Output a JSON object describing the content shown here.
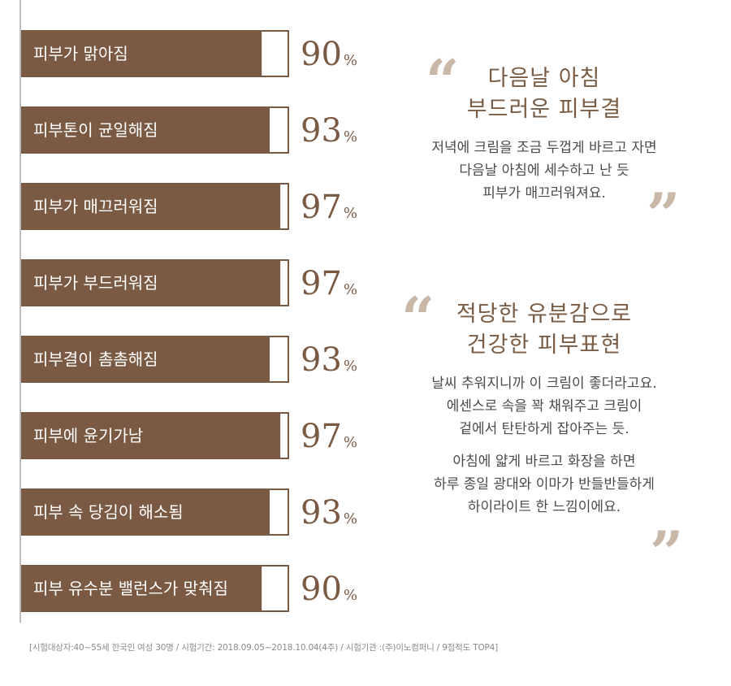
{
  "chart_data": {
    "type": "bar",
    "orientation": "horizontal",
    "categories": [
      "피부가 맑아짐",
      "피부톤이 균일해짐",
      "피부가 매끄러워짐",
      "피부가 부드러워짐",
      "피부결이 촘촘해짐",
      "피부에 윤기가남",
      "피부 속 당김이 해소됨",
      "피부 유수분 밸런스가 맞춰짐"
    ],
    "values": [
      90,
      93,
      97,
      97,
      93,
      97,
      93,
      90
    ],
    "value_labels": [
      "90",
      "93",
      "97",
      "97",
      "93",
      "97",
      "93",
      "90"
    ],
    "unit": "%",
    "xlim": [
      0,
      100
    ],
    "bar_color": "#7b5a44",
    "remainder_color": "#ffffff"
  },
  "testimonials": [
    {
      "title_lines": [
        "다음날 아침",
        "부드러운 피부결"
      ],
      "body_lines": [
        "저녁에 크림을 조금 두껍게 바르고 자면",
        "다음날 아침에 세수하고 난 듯",
        "피부가 매끄러워져요."
      ],
      "open_mark": "“",
      "close_mark": "”"
    },
    {
      "title_lines": [
        "적당한 유분감으로",
        "건강한 피부표현"
      ],
      "body_lines_1": [
        "날씨 추워지니까 이 크림이 좋더라고요.",
        "에센스로 속을 꽉 채워주고 크림이",
        "겉에서 탄탄하게 잡아주는 듯."
      ],
      "body_lines_2": [
        "아침에 얇게 바르고 화장을 하면",
        "하루 종일 광대와 이마가 반들반들하게",
        "하이라이트 한 느낌이에요."
      ],
      "open_mark": "“",
      "close_mark": "”"
    }
  ],
  "footnote": "[시험대상자:40~55세 한국인 여성 30명 / 시험기간: 2018.09.05~2018.10.04(4주) / 시험기관 :(주)이노컴퍼니 / 9점척도 TOP4]",
  "colors": {
    "accent": "#7b5a44",
    "quote_mark": "#c9b7a8",
    "title": "#7a5c45"
  }
}
